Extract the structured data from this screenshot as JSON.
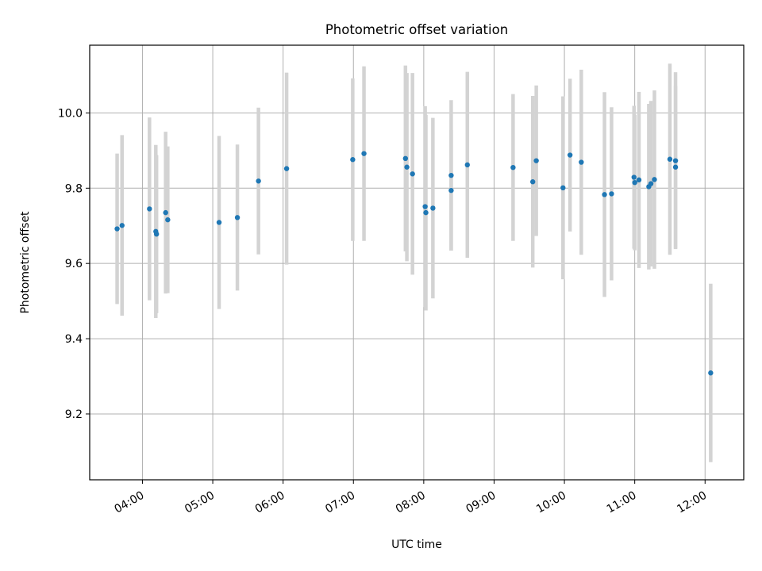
{
  "chart_data": {
    "type": "scatter",
    "title": "Photometric offset variation",
    "xlabel": "UTC time",
    "ylabel": "Photometric offset",
    "x_unit": "hours UTC",
    "xlim": [
      3.25,
      12.55
    ],
    "ylim": [
      9.025,
      10.18
    ],
    "x_ticks": [
      {
        "value": 4,
        "label": "04:00"
      },
      {
        "value": 5,
        "label": "05:00"
      },
      {
        "value": 6,
        "label": "06:00"
      },
      {
        "value": 7,
        "label": "07:00"
      },
      {
        "value": 8,
        "label": "08:00"
      },
      {
        "value": 9,
        "label": "09:00"
      },
      {
        "value": 10,
        "label": "10:00"
      },
      {
        "value": 11,
        "label": "11:00"
      },
      {
        "value": 12,
        "label": "12:00"
      }
    ],
    "y_ticks": [
      {
        "value": 9.2,
        "label": "9.2"
      },
      {
        "value": 9.4,
        "label": "9.4"
      },
      {
        "value": 9.6,
        "label": "9.6"
      },
      {
        "value": 9.8,
        "label": "9.8"
      },
      {
        "value": 10.0,
        "label": "10.0"
      }
    ],
    "grid": true,
    "marker_color": "#1f77b4",
    "errorbar_color": "#d3d3d3",
    "points": [
      {
        "x": 3.64,
        "y": 9.692,
        "err": 0.2
      },
      {
        "x": 3.71,
        "y": 9.701,
        "err": 0.24
      },
      {
        "x": 4.1,
        "y": 9.745,
        "err": 0.243
      },
      {
        "x": 4.19,
        "y": 9.685,
        "err": 0.23
      },
      {
        "x": 4.2,
        "y": 9.678,
        "err": 0.21
      },
      {
        "x": 4.33,
        "y": 9.735,
        "err": 0.215
      },
      {
        "x": 4.36,
        "y": 9.716,
        "err": 0.195
      },
      {
        "x": 5.09,
        "y": 9.709,
        "err": 0.23
      },
      {
        "x": 5.35,
        "y": 9.722,
        "err": 0.194
      },
      {
        "x": 5.65,
        "y": 9.819,
        "err": 0.195
      },
      {
        "x": 6.05,
        "y": 9.852,
        "err": 0.255
      },
      {
        "x": 6.99,
        "y": 9.876,
        "err": 0.216
      },
      {
        "x": 7.15,
        "y": 9.892,
        "err": 0.232
      },
      {
        "x": 7.74,
        "y": 9.879,
        "err": 0.247
      },
      {
        "x": 7.76,
        "y": 9.856,
        "err": 0.25
      },
      {
        "x": 7.84,
        "y": 9.838,
        "err": 0.268
      },
      {
        "x": 8.02,
        "y": 9.751,
        "err": 0.267
      },
      {
        "x": 8.03,
        "y": 9.735,
        "err": 0.26
      },
      {
        "x": 8.13,
        "y": 9.747,
        "err": 0.24
      },
      {
        "x": 8.39,
        "y": 9.834,
        "err": 0.2
      },
      {
        "x": 8.39,
        "y": 9.794,
        "err": 0.16
      },
      {
        "x": 8.62,
        "y": 9.862,
        "err": 0.247
      },
      {
        "x": 9.27,
        "y": 9.855,
        "err": 0.195
      },
      {
        "x": 9.55,
        "y": 9.817,
        "err": 0.228
      },
      {
        "x": 9.6,
        "y": 9.873,
        "err": 0.2
      },
      {
        "x": 9.98,
        "y": 9.801,
        "err": 0.243
      },
      {
        "x": 10.08,
        "y": 9.888,
        "err": 0.203
      },
      {
        "x": 10.24,
        "y": 9.869,
        "err": 0.246
      },
      {
        "x": 10.57,
        "y": 9.783,
        "err": 0.272
      },
      {
        "x": 10.67,
        "y": 9.785,
        "err": 0.23
      },
      {
        "x": 10.99,
        "y": 9.829,
        "err": 0.19
      },
      {
        "x": 11.0,
        "y": 9.815,
        "err": 0.18
      },
      {
        "x": 11.06,
        "y": 9.822,
        "err": 0.234
      },
      {
        "x": 11.2,
        "y": 9.804,
        "err": 0.22
      },
      {
        "x": 11.23,
        "y": 9.812,
        "err": 0.22
      },
      {
        "x": 11.28,
        "y": 9.823,
        "err": 0.237
      },
      {
        "x": 11.5,
        "y": 9.877,
        "err": 0.254
      },
      {
        "x": 11.58,
        "y": 9.873,
        "err": 0.235
      },
      {
        "x": 11.58,
        "y": 9.856,
        "err": 0.216
      },
      {
        "x": 12.08,
        "y": 9.309,
        "err": 0.237
      }
    ]
  }
}
